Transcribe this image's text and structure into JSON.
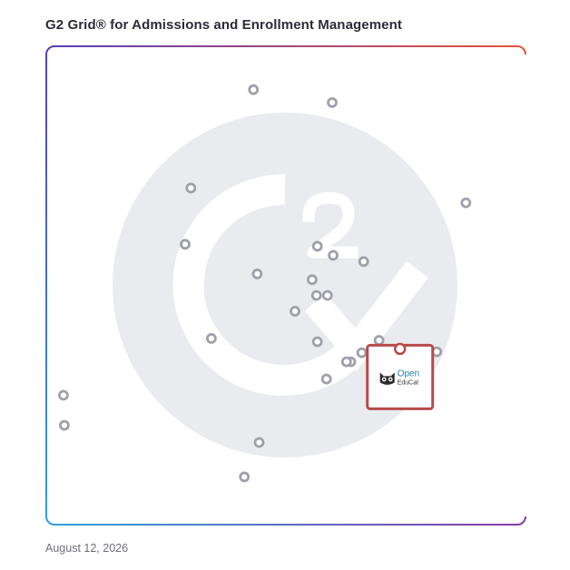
{
  "title": "G2 Grid® for Admissions and Enrollment Management",
  "date": "August 12, 2026",
  "colors": {
    "border_top_left": "#5b3fb8",
    "border_top_right": "#e8533a",
    "border_bottom_left": "#2f9fd8",
    "border_bottom_right": "#8a3aa8",
    "dot": "#a0a0ab",
    "watermark": "#e9ebee",
    "highlight": "#b84a4a",
    "logo_blue": "#1c7fc4"
  },
  "chart_data": {
    "type": "scatter",
    "xlim": [
      0,
      100
    ],
    "ylim": [
      0,
      100
    ],
    "xlabel": "",
    "ylabel": "",
    "quadrant_split": {
      "x": 50,
      "y": 50
    },
    "grid": false,
    "points": [
      {
        "x": 43.2,
        "y": 91.1
      },
      {
        "x": 59.7,
        "y": 88.4
      },
      {
        "x": 30.1,
        "y": 70.5
      },
      {
        "x": 87.7,
        "y": 67.4
      },
      {
        "x": 28.9,
        "y": 58.7
      },
      {
        "x": 56.6,
        "y": 58.3
      },
      {
        "x": 59.9,
        "y": 56.4
      },
      {
        "x": 66.3,
        "y": 55.1
      },
      {
        "x": 44.0,
        "y": 52.5
      },
      {
        "x": 55.5,
        "y": 51.3
      },
      {
        "x": 56.4,
        "y": 48.0
      },
      {
        "x": 58.7,
        "y": 48.0
      },
      {
        "x": 51.9,
        "y": 44.7
      },
      {
        "x": 34.4,
        "y": 39.0
      },
      {
        "x": 56.6,
        "y": 38.3
      },
      {
        "x": 69.5,
        "y": 38.6
      },
      {
        "x": 65.9,
        "y": 36.0
      },
      {
        "x": 63.6,
        "y": 34.1
      },
      {
        "x": 62.7,
        "y": 34.1
      },
      {
        "x": 81.6,
        "y": 36.2
      },
      {
        "x": 58.5,
        "y": 30.5
      },
      {
        "x": 3.4,
        "y": 27.1
      },
      {
        "x": 3.6,
        "y": 20.8
      },
      {
        "x": 44.4,
        "y": 17.2
      },
      {
        "x": 41.3,
        "y": 10.0
      }
    ],
    "highlighted": {
      "x": 73.9,
      "y": 36.8,
      "name": "OpenEduCat",
      "logo_text_top": "Open",
      "logo_text_bottom": "EduCat"
    }
  }
}
